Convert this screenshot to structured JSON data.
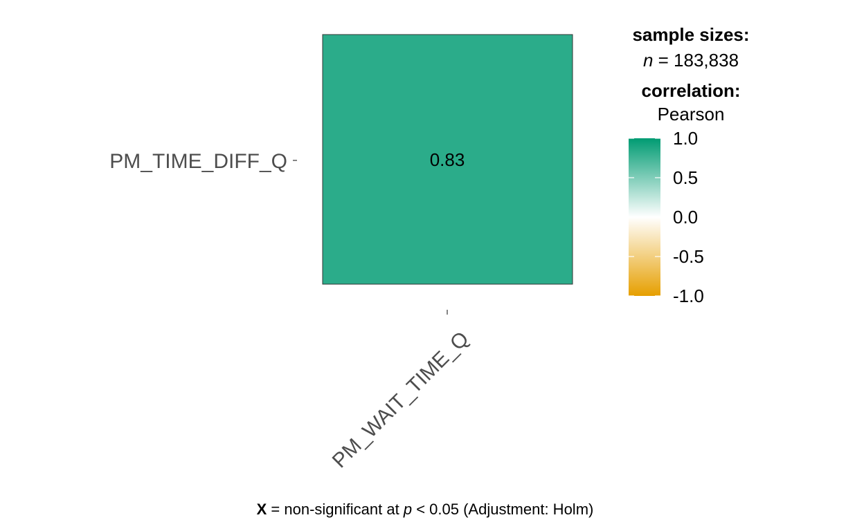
{
  "chart_data": {
    "type": "heatmap",
    "rows": [
      "PM_TIME_DIFF_Q"
    ],
    "cols": [
      "PM_WAIT_TIME_Q"
    ],
    "values": [
      [
        0.83
      ]
    ],
    "value_labels": [
      [
        "0.83"
      ]
    ],
    "legend": {
      "sample_sizes_title": "sample sizes:",
      "n_symbol": "n",
      "n_text": " = 183,838",
      "correlation_title": "correlation:",
      "method": "Pearson",
      "ticks": [
        {
          "value": 1.0,
          "label": "1.0"
        },
        {
          "value": 0.5,
          "label": "0.5"
        },
        {
          "value": 0.0,
          "label": "0.0"
        },
        {
          "value": -0.5,
          "label": "-0.5"
        },
        {
          "value": -1.0,
          "label": "-1.0"
        }
      ],
      "range": [
        -1,
        1
      ],
      "colors": {
        "high": "#009B72",
        "mid": "#FFFFFF",
        "low": "#E69F00"
      }
    },
    "caption": {
      "bold": "X",
      "pre": " = non-significant at ",
      "italic": "p",
      "post": " < 0.05 (Adjustment: Holm)"
    }
  }
}
